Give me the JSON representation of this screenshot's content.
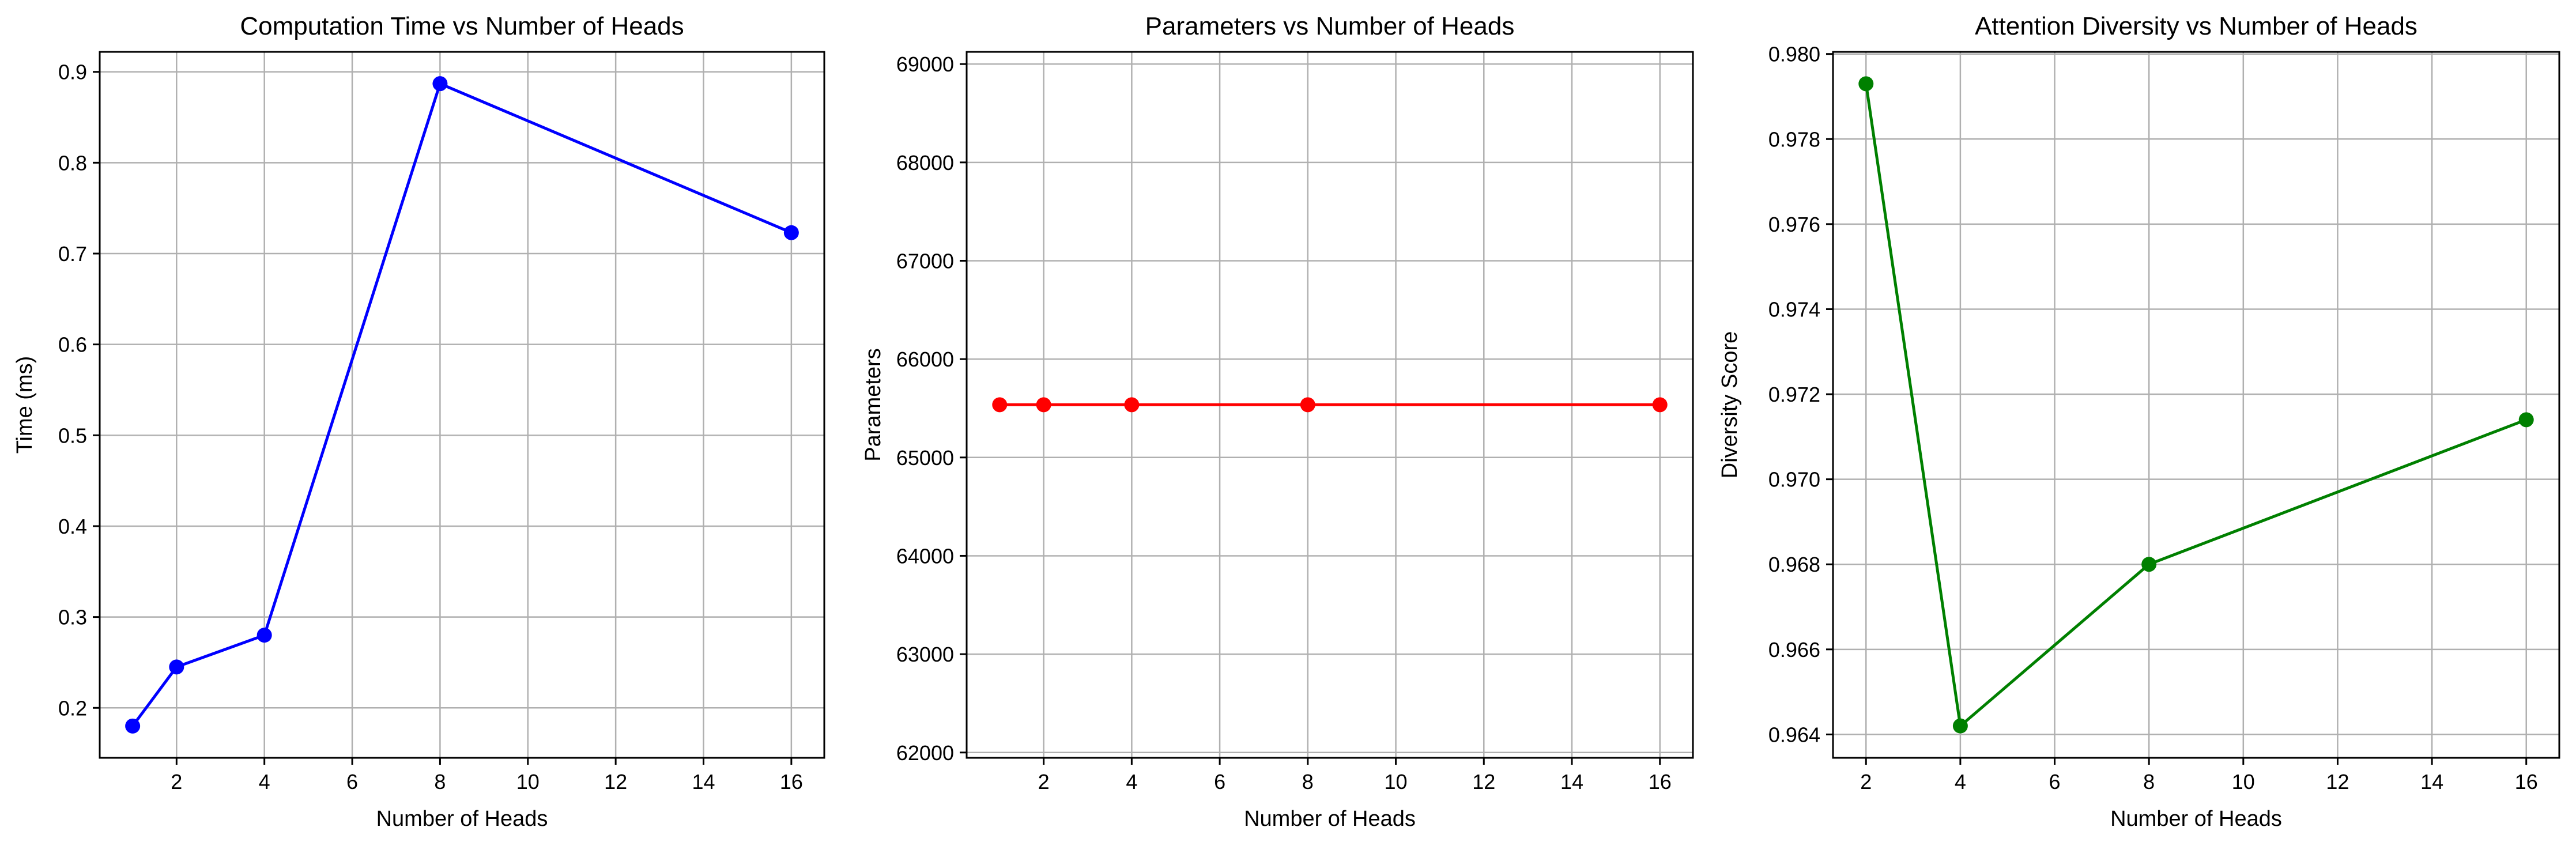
{
  "chart_data": [
    {
      "type": "line",
      "title": "Computation Time vs Number of Heads",
      "xlabel": "Number of Heads",
      "ylabel": "Time (ms)",
      "x": [
        1,
        2,
        4,
        8,
        16
      ],
      "series": [
        {
          "values": [
            0.18,
            0.245,
            0.28,
            0.887,
            0.723
          ],
          "color": "#0000ff"
        }
      ],
      "xlim": [
        0.25,
        16.75
      ],
      "ylim": [
        0.145,
        0.922
      ],
      "xticks": [
        2,
        4,
        6,
        8,
        10,
        12,
        14,
        16
      ],
      "xtick_labels": [
        "2",
        "4",
        "6",
        "8",
        "10",
        "12",
        "14",
        "16"
      ],
      "yticks": [
        0.2,
        0.3,
        0.4,
        0.5,
        0.6,
        0.7,
        0.8,
        0.9
      ],
      "ytick_labels": [
        "0.2",
        "0.3",
        "0.4",
        "0.5",
        "0.6",
        "0.7",
        "0.8",
        "0.9"
      ],
      "grid": true,
      "marker": "circle"
    },
    {
      "type": "line",
      "title": "Parameters vs Number of Heads",
      "xlabel": "Number of Heads",
      "ylabel": "Parameters",
      "x": [
        1,
        2,
        4,
        8,
        16
      ],
      "series": [
        {
          "values": [
            65536,
            65536,
            65536,
            65536,
            65536
          ],
          "color": "#ff0000"
        }
      ],
      "xlim": [
        0.25,
        16.75
      ],
      "ylim": [
        61946,
        69124
      ],
      "xticks": [
        2,
        4,
        6,
        8,
        10,
        12,
        14,
        16
      ],
      "xtick_labels": [
        "2",
        "4",
        "6",
        "8",
        "10",
        "12",
        "14",
        "16"
      ],
      "yticks": [
        62000,
        63000,
        64000,
        65000,
        66000,
        67000,
        68000,
        69000
      ],
      "ytick_labels": [
        "62000",
        "63000",
        "64000",
        "65000",
        "66000",
        "67000",
        "68000",
        "69000"
      ],
      "grid": true,
      "marker": "circle"
    },
    {
      "type": "line",
      "title": "Attention Diversity vs Number of Heads",
      "xlabel": "Number of Heads",
      "ylabel": "Diversity Score",
      "x": [
        2,
        4,
        8,
        16
      ],
      "series": [
        {
          "values": [
            0.9793,
            0.9642,
            0.968,
            0.9714
          ],
          "color": "#008000"
        }
      ],
      "xlim": [
        1.3,
        16.7
      ],
      "ylim": [
        0.96345,
        0.98005
      ],
      "xticks": [
        2,
        4,
        6,
        8,
        10,
        12,
        14,
        16
      ],
      "xtick_labels": [
        "2",
        "4",
        "6",
        "8",
        "10",
        "12",
        "14",
        "16"
      ],
      "yticks": [
        0.964,
        0.966,
        0.968,
        0.97,
        0.972,
        0.974,
        0.976,
        0.978,
        0.98
      ],
      "ytick_labels": [
        "0.964",
        "0.966",
        "0.968",
        "0.970",
        "0.972",
        "0.974",
        "0.976",
        "0.978",
        "0.980"
      ],
      "grid": true,
      "marker": "circle"
    }
  ]
}
